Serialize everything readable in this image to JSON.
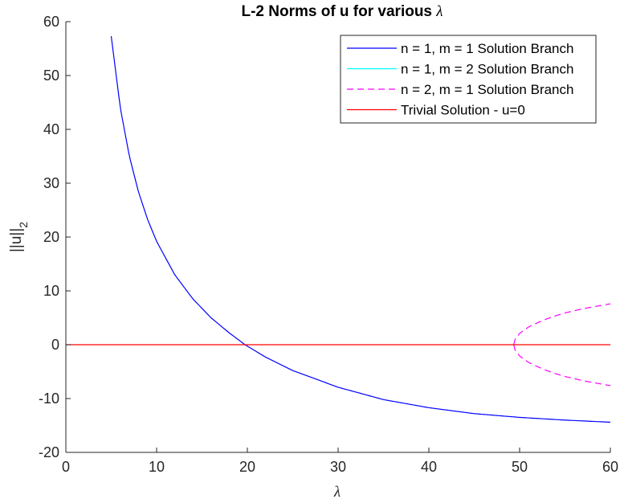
{
  "chart_data": {
    "type": "line",
    "title": "L-2 Norms of u for various",
    "title_symbol": "λ",
    "xlabel": "λ",
    "ylabel": "||u||",
    "ylabel_sub": "2",
    "xlim": [
      0,
      60
    ],
    "ylim": [
      -20,
      60
    ],
    "xticks": [
      0,
      10,
      20,
      30,
      40,
      50,
      60
    ],
    "yticks": [
      -20,
      -10,
      0,
      10,
      20,
      30,
      40,
      50,
      60
    ],
    "grid": false,
    "legend_position": "top-right",
    "series": [
      {
        "name": "n = 1, m = 1 Solution Branch",
        "color": "#0000ff",
        "style": "solid",
        "x": [
          5,
          6,
          7,
          8,
          9,
          10,
          12,
          14,
          16,
          18,
          19.74,
          22,
          25,
          30,
          35,
          40,
          45,
          50,
          55,
          60
        ],
        "values": [
          57.3,
          44.0,
          35.0,
          28.4,
          23.3,
          19.2,
          13.0,
          8.5,
          5.0,
          2.2,
          0.0,
          -2.3,
          -4.8,
          -7.9,
          -10.2,
          -11.7,
          -12.8,
          -13.5,
          -14.0,
          -14.4
        ]
      },
      {
        "name": "n = 1, m = 2 Solution Branch",
        "color": "#00ffff",
        "style": "solid",
        "x": [],
        "values": []
      },
      {
        "name": "n = 2, m = 1 Solution Branch",
        "color": "#ff00ff",
        "style": "dashed",
        "x": [
          49.35,
          49.5,
          50,
          51,
          52,
          53,
          54,
          55,
          56,
          57,
          58,
          59,
          60
        ],
        "values": [
          0,
          1.0,
          2.1,
          3.3,
          4.1,
          4.8,
          5.4,
          5.9,
          6.3,
          6.7,
          7.0,
          7.3,
          7.6
        ],
        "mirrored": true
      },
      {
        "name": "Trivial Solution - u=0",
        "color": "#ff0000",
        "style": "solid",
        "x": [
          0,
          60
        ],
        "values": [
          0,
          0
        ]
      }
    ]
  }
}
